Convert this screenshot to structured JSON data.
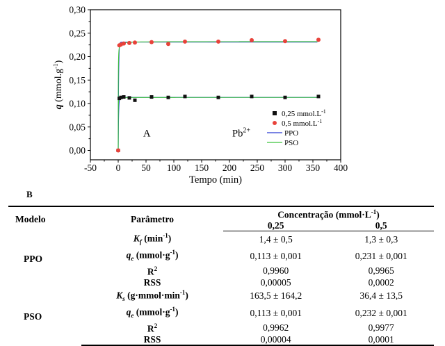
{
  "chart_data": {
    "type": "scatter",
    "xlabel": "Tempo (min)",
    "ylabel": "q (mmol.g-1)",
    "ylabel_italic": "q",
    "ylabel_rest": " (mmol.g",
    "ylabel_sup": "-1",
    "ylabel_close": ")",
    "xlim": [
      -50,
      400
    ],
    "ylim": [
      -0.02,
      0.3
    ],
    "x_ticks": [
      -50,
      0,
      50,
      100,
      150,
      200,
      250,
      300,
      350,
      400
    ],
    "x_tick_labels": [
      "-50",
      "0",
      "50",
      "100",
      "150",
      "200",
      "250",
      "300",
      "350",
      "400"
    ],
    "y_ticks": [
      0.0,
      0.05,
      0.1,
      0.15,
      0.2,
      0.25,
      0.3
    ],
    "y_tick_labels": [
      "0,00",
      "0,05",
      "0,10",
      "0,15",
      "0,20",
      "0,25",
      "0,30"
    ],
    "grid": false,
    "legend_position": "bottom-right",
    "annotations": [
      {
        "text": "A",
        "x": 45,
        "y": 0.03
      },
      {
        "text": "Pb",
        "sup": "2+",
        "x": 205,
        "y": 0.03
      }
    ],
    "series": [
      {
        "name": "0,25 mmol.L-1",
        "name_main": "0,25 mmol.L",
        "name_sup": "-1",
        "marker": "square",
        "color": "#111111",
        "x": [
          0,
          2,
          5,
          10,
          20,
          30,
          60,
          90,
          120,
          180,
          240,
          300,
          360
        ],
        "y": [
          0.0,
          0.111,
          0.113,
          0.114,
          0.112,
          0.107,
          0.114,
          0.113,
          0.115,
          0.113,
          0.115,
          0.113,
          0.115
        ]
      },
      {
        "name": "0,5 mmol.L-1",
        "name_main": "0,5 mmol.L",
        "name_sup": "-1",
        "marker": "circle",
        "color": "#e8423a",
        "x": [
          0,
          2,
          5,
          10,
          20,
          30,
          60,
          90,
          120,
          180,
          240,
          300,
          360
        ],
        "y": [
          0.0,
          0.224,
          0.226,
          0.228,
          0.229,
          0.23,
          0.231,
          0.227,
          0.232,
          0.232,
          0.235,
          0.233,
          0.236
        ]
      },
      {
        "name": "PPO",
        "line": true,
        "color": "#2b3bd4",
        "model": "PPO",
        "k": 1.4,
        "qe": [
          0.113,
          0.231
        ]
      },
      {
        "name": "PSO",
        "line": true,
        "color": "#3cc33c",
        "model": "PSO",
        "k": [
          163.5,
          36.4
        ],
        "qe": [
          0.113,
          0.232
        ]
      }
    ]
  },
  "panel_b_label": "B",
  "table": {
    "col_model": "Modelo",
    "col_param": "Parâmetro",
    "col_conc": "Concentração (mmol·L",
    "col_conc_sup": "-1",
    "col_conc_close": ")",
    "conc_1": "0,25",
    "conc_2": "0,5",
    "groups": [
      {
        "model": "PPO",
        "rows": [
          {
            "sym": "K",
            "sub": "f",
            "unit": " (min",
            "unit_sup": "-1",
            "unit_close": ")",
            "v1": "1,4 ± 0,5",
            "v2": "1,3 ± 0,3"
          },
          {
            "sym": "q",
            "sub": "e",
            "unit": " (mmol·g",
            "unit_sup": "-1",
            "unit_close": ")",
            "v1": "0,113 ± 0,001",
            "v2": "0,231 ± 0,001"
          },
          {
            "sym": "",
            "sub": "",
            "unit": "R",
            "unit_sup": "2",
            "unit_close": "",
            "v1": "0,9960",
            "v2": "0,9965"
          },
          {
            "sym": "",
            "sub": "",
            "unit": "RSS",
            "unit_sup": "",
            "unit_close": "",
            "v1": "0,00005",
            "v2": "0,0002"
          }
        ]
      },
      {
        "model": "PSO",
        "rows": [
          {
            "sym": "K",
            "sub": "s",
            "unit": " (g·mmol·min",
            "unit_sup": "-1",
            "unit_close": ")",
            "v1": "163,5 ± 164,2",
            "v2": "36,4 ± 13,5"
          },
          {
            "sym": "q",
            "sub": "e",
            "unit": " (mmol·g",
            "unit_sup": "-1",
            "unit_close": ")",
            "v1": "0,113 ± 0,001",
            "v2": "0,232 ± 0,001"
          },
          {
            "sym": "",
            "sub": "",
            "unit": "R",
            "unit_sup": "2",
            "unit_close": "",
            "v1": "0,9962",
            "v2": "0,9977"
          },
          {
            "sym": "",
            "sub": "",
            "unit": "RSS",
            "unit_sup": "",
            "unit_close": "",
            "v1": "0,00004",
            "v2": "0,0001"
          }
        ]
      }
    ]
  }
}
